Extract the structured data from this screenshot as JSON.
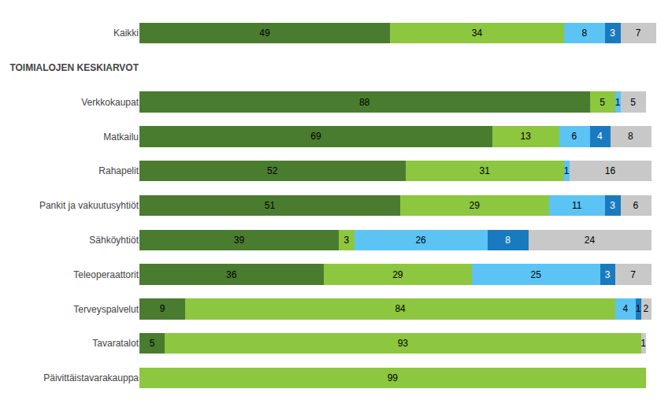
{
  "chart_data": {
    "type": "bar",
    "orientation": "horizontal",
    "stacked": true,
    "categories": [
      "Kaikki",
      "TOIMIALOJEN KESKIARVOT",
      "Verkkokaupat",
      "Matkailu",
      "Rahapelit",
      "Pankit ja vakuutusyhtiöt",
      "Sähköyhtiöt",
      "Teleoperaattorit",
      "Terveyspalvelut",
      "Tavaratalot",
      "Päivittäistavarakauppa"
    ],
    "series": [
      {
        "color": "#4a7c2f",
        "values": [
          49,
          null,
          88,
          69,
          52,
          51,
          39,
          36,
          9,
          5,
          0
        ]
      },
      {
        "color": "#8dc63f",
        "values": [
          34,
          null,
          5,
          13,
          31,
          29,
          3,
          29,
          84,
          93,
          99
        ]
      },
      {
        "color": "#5bc4f5",
        "values": [
          8,
          null,
          1,
          6,
          1,
          11,
          26,
          25,
          4,
          0,
          0
        ]
      },
      {
        "color": "#1a7abf",
        "values": [
          3,
          null,
          0,
          4,
          0,
          3,
          8,
          3,
          1,
          0,
          0
        ]
      },
      {
        "color": "#c8c8c8",
        "values": [
          7,
          null,
          5,
          8,
          16,
          6,
          24,
          7,
          2,
          1,
          0
        ]
      }
    ],
    "xlim": [
      0,
      101
    ],
    "data_labels": true,
    "tick_labels": "y",
    "grid": false
  }
}
